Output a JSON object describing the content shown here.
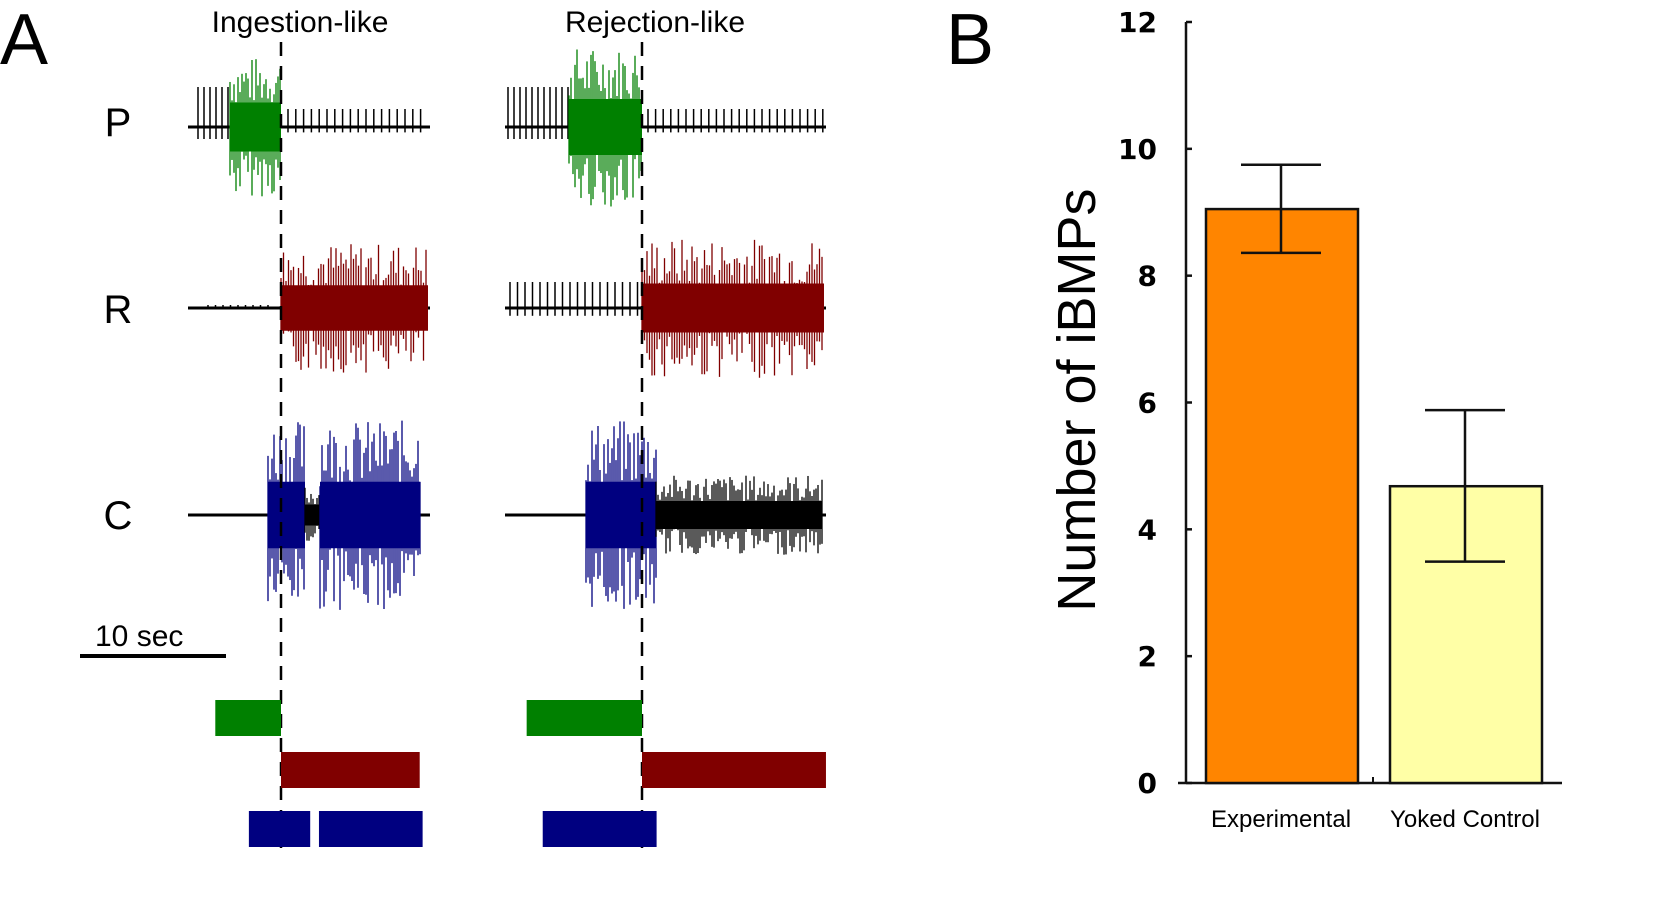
{
  "panel_a": {
    "letter": "A",
    "conditions": [
      {
        "title": "Ingestion-like"
      },
      {
        "title": "Rejection-like"
      }
    ],
    "channels": [
      {
        "label": "P",
        "color": "#008000"
      },
      {
        "label": "R",
        "color": "#800000"
      },
      {
        "label": "C",
        "color": "#000080"
      }
    ],
    "scale_bar": {
      "label": "10 sec"
    },
    "trace_baseline_color": "#000000",
    "activity_bars": {
      "ingestion": [
        {
          "channel": "P",
          "start_sec": -4.5,
          "end_sec": 0
        },
        {
          "channel": "R",
          "start_sec": 0,
          "end_sec": 9.5
        },
        {
          "channel": "C",
          "start_sec": -2.2,
          "end_sec": 2.0
        },
        {
          "channel": "C",
          "start_sec": 2.6,
          "end_sec": 9.7
        }
      ],
      "rejection": [
        {
          "channel": "P",
          "start_sec": -7.9,
          "end_sec": 0
        },
        {
          "channel": "R",
          "start_sec": 0,
          "end_sec": 12.6
        },
        {
          "channel": "C",
          "start_sec": -6.8,
          "end_sec": 1.0
        }
      ]
    }
  },
  "chart_data": {
    "type": "bar",
    "panel_letter": "B",
    "title": "",
    "xlabel": "",
    "ylabel": "Number of iBMPs",
    "categories": [
      "Experimental",
      "Yoked Control"
    ],
    "values": [
      9.05,
      4.68
    ],
    "error_upper": [
      9.75,
      5.88
    ],
    "error_lower": [
      8.36,
      3.49
    ],
    "colors": [
      "#ff8500",
      "#ffffa6"
    ],
    "ylim": [
      0,
      12
    ],
    "yticks": [
      0,
      2,
      4,
      6,
      8,
      10,
      12
    ],
    "grid": false,
    "legend": "none"
  }
}
